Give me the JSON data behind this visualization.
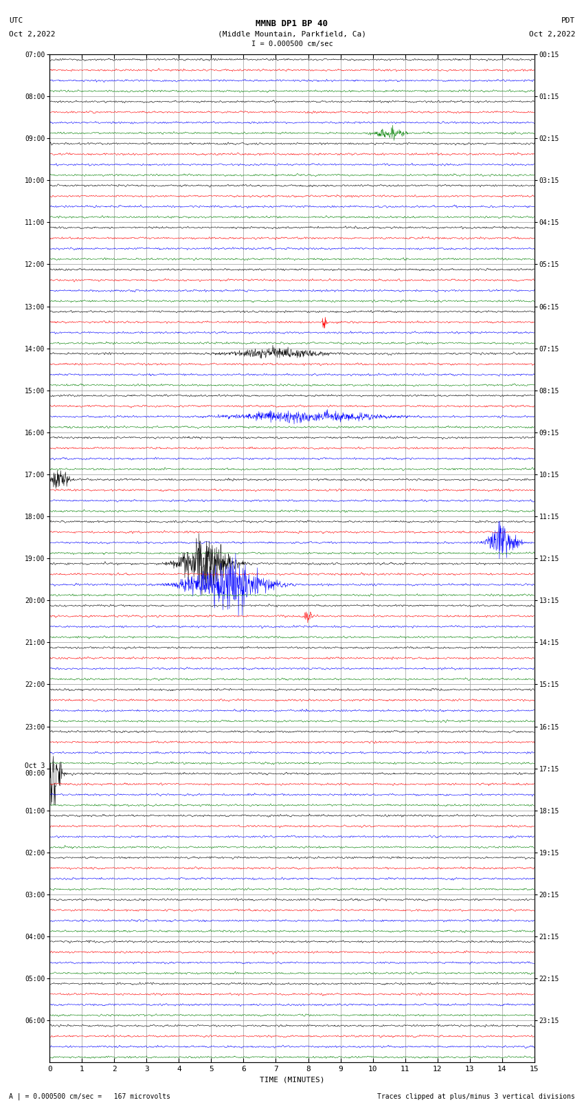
{
  "title_line1": "MMNB DP1 BP 40",
  "title_line2": "(Middle Mountain, Parkfield, Ca)",
  "scale_label": "I = 0.000500 cm/sec",
  "left_date_label": "UTC\nOct 2,2022",
  "right_date_label": "PDT\nOct 2,2022",
  "xlabel": "TIME (MINUTES)",
  "bottom_left_note": "A | = 0.000500 cm/sec =   167 microvolts",
  "bottom_right_note": "Traces clipped at plus/minus 3 vertical divisions",
  "num_rows": 24,
  "minutes_per_row": 15,
  "traces_per_row": 4,
  "trace_colors": [
    "black",
    "red",
    "blue",
    "green"
  ],
  "noise_amplitude": 0.018,
  "bg_color": "white",
  "grid_color": "#999999",
  "figsize": [
    8.5,
    16.13
  ],
  "dpi": 100,
  "right_labels": [
    "00:15",
    "01:15",
    "02:15",
    "03:15",
    "04:15",
    "05:15",
    "06:15",
    "07:15",
    "08:15",
    "09:15",
    "10:15",
    "11:15",
    "12:15",
    "13:15",
    "14:15",
    "15:15",
    "16:15",
    "17:15",
    "18:15",
    "19:15",
    "20:15",
    "21:15",
    "22:15",
    "23:15"
  ],
  "left_labels": [
    "07:00",
    "08:00",
    "09:00",
    "10:00",
    "11:00",
    "12:00",
    "13:00",
    "14:00",
    "15:00",
    "16:00",
    "17:00",
    "18:00",
    "19:00",
    "20:00",
    "21:00",
    "22:00",
    "23:00",
    "Oct 3\n00:00",
    "01:00",
    "02:00",
    "03:00",
    "04:00",
    "05:00",
    "06:00"
  ]
}
